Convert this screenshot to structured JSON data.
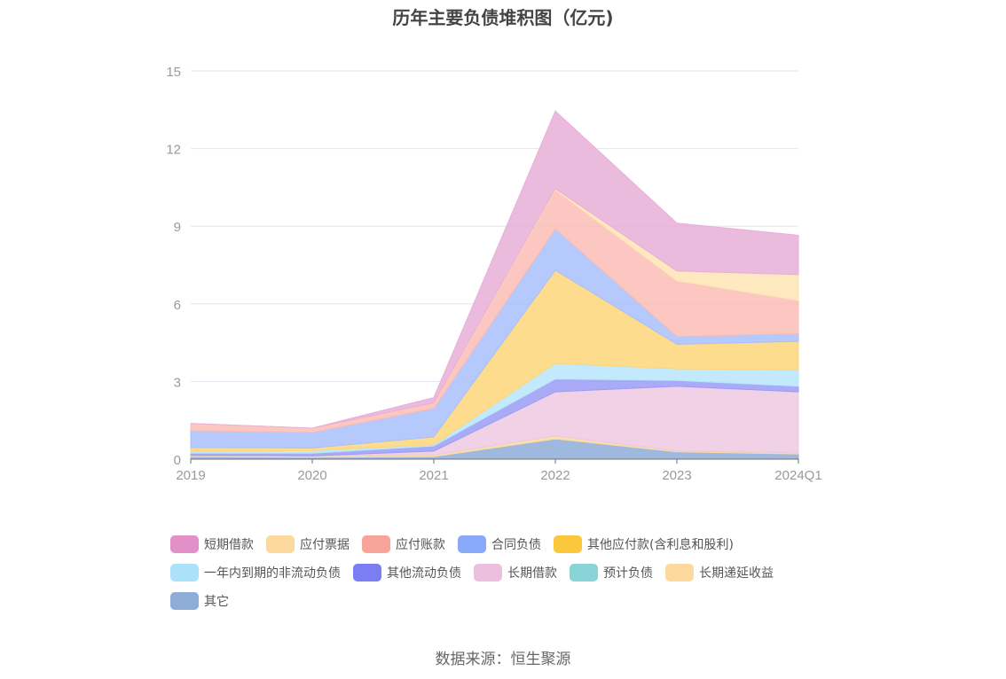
{
  "chart_data": {
    "type": "area",
    "stacked": true,
    "title": "历年主要负债堆积图（亿元)",
    "categories": [
      "2019",
      "2020",
      "2021",
      "2022",
      "2023",
      "2024Q1"
    ],
    "ylim": [
      0,
      15
    ],
    "yticks": [
      0,
      3,
      6,
      9,
      12,
      15
    ],
    "grid": true,
    "legend_position": "bottom",
    "series": [
      {
        "name": "其它",
        "color": "#8eacd8",
        "values": [
          0.1,
          0.08,
          0.1,
          0.78,
          0.28,
          0.2
        ]
      },
      {
        "name": "长期递延收益",
        "color": "#fdd9a0",
        "values": [
          0.05,
          0.05,
          0.06,
          0.12,
          0.04,
          0.05
        ]
      },
      {
        "name": "预计负债",
        "color": "#8fd6d8",
        "values": [
          0.0,
          0.0,
          0.0,
          0.0,
          0.0,
          0.0
        ]
      },
      {
        "name": "长期借款",
        "color": "#efc9e2",
        "values": [
          0.0,
          0.0,
          0.15,
          1.7,
          2.5,
          2.35
        ]
      },
      {
        "name": "其他流动负债",
        "color": "#9b9cf5",
        "values": [
          0.08,
          0.1,
          0.2,
          0.5,
          0.22,
          0.22
        ]
      },
      {
        "name": "一年内到期的非流动负债",
        "color": "#b7e6fb",
        "values": [
          0.08,
          0.1,
          0.05,
          0.6,
          0.45,
          0.63
        ]
      },
      {
        "name": "其他应付款(含利息和股利)",
        "color": "#fed67a",
        "values": [
          0.14,
          0.1,
          0.3,
          3.6,
          0.95,
          1.1
        ]
      },
      {
        "name": "合同负债",
        "color": "#a8bffc",
        "values": [
          0.65,
          0.6,
          1.1,
          1.6,
          0.3,
          0.3
        ]
      },
      {
        "name": "应付账款",
        "color": "#fbbcb6",
        "values": [
          0.28,
          0.17,
          0.22,
          1.5,
          2.15,
          1.28
        ]
      },
      {
        "name": "应付票据",
        "color": "#fee4b4",
        "values": [
          0.0,
          0.0,
          0.0,
          0.05,
          0.38,
          1.0
        ]
      },
      {
        "name": "短期借款",
        "color": "#e7afd8",
        "values": [
          0.0,
          0.0,
          0.2,
          3.0,
          1.85,
          1.52
        ]
      }
    ],
    "legend_rows": [
      [
        {
          "name": "短期借款",
          "color": "#e190c8"
        },
        {
          "name": "应付票据",
          "color": "#fdd9a0"
        },
        {
          "name": "应付账款",
          "color": "#f8a49b"
        },
        {
          "name": "合同负债",
          "color": "#8aa9f9"
        },
        {
          "name": "其他应付款(含利息和股利)",
          "color": "#fbc83d"
        }
      ],
      [
        {
          "name": "一年内到期的非流动负债",
          "color": "#ace1fa"
        },
        {
          "name": "其他流动负债",
          "color": "#7b7df2"
        },
        {
          "name": "长期借款",
          "color": "#ecbfde"
        },
        {
          "name": "预计负债",
          "color": "#89d4d6"
        },
        {
          "name": "长期递延收益",
          "color": "#fdd9a0"
        }
      ],
      [
        {
          "name": "其它",
          "color": "#8eacd8"
        }
      ]
    ]
  },
  "source_note": "数据来源：恒生聚源"
}
